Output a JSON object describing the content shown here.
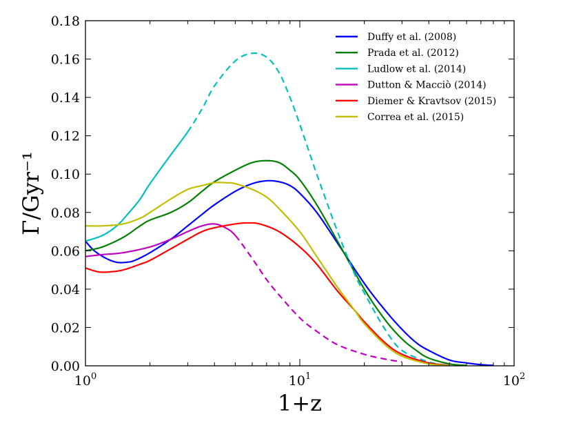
{
  "chart_data": {
    "type": "line",
    "title": "",
    "xlabel": "1+z",
    "ylabel": "Γ/Gyr⁻¹",
    "xscale": "log",
    "xlim": [
      1,
      100
    ],
    "ylim": [
      0,
      0.18
    ],
    "x_ticks": [
      {
        "value": 1,
        "base": "10",
        "exp": "0"
      },
      {
        "value": 10,
        "base": "10",
        "exp": "1"
      },
      {
        "value": 100,
        "base": "10",
        "exp": "2"
      }
    ],
    "y_ticks": [
      {
        "value": 0.0,
        "label": "0.00"
      },
      {
        "value": 0.02,
        "label": "0.02"
      },
      {
        "value": 0.04,
        "label": "0.04"
      },
      {
        "value": 0.06,
        "label": "0.06"
      },
      {
        "value": 0.08,
        "label": "0.08"
      },
      {
        "value": 0.1,
        "label": "0.10"
      },
      {
        "value": 0.12,
        "label": "0.12"
      },
      {
        "value": 0.14,
        "label": "0.14"
      },
      {
        "value": 0.16,
        "label": "0.16"
      },
      {
        "value": 0.18,
        "label": "0.18"
      }
    ],
    "legend_position": "top-right",
    "series": [
      {
        "name": "Duffy et al. (2008)",
        "color": "#0000ff",
        "x": [
          1.0,
          1.1,
          1.25,
          1.4,
          1.55,
          1.7,
          2.0,
          2.5,
          3.0,
          3.5,
          4.0,
          5.0,
          6.0,
          7.0,
          8.0,
          9.0,
          10.0,
          12.0,
          15.0,
          20.0,
          25.0,
          30.0,
          35.0,
          40.0,
          50.0,
          60.0,
          70.0,
          80.0
        ],
        "y": [
          0.065,
          0.06,
          0.056,
          0.054,
          0.054,
          0.055,
          0.059,
          0.066,
          0.073,
          0.079,
          0.084,
          0.091,
          0.095,
          0.0965,
          0.096,
          0.094,
          0.09,
          0.08,
          0.064,
          0.043,
          0.029,
          0.019,
          0.012,
          0.008,
          0.003,
          0.0015,
          0.0006,
          0.0002
        ],
        "solid_until": 80.0
      },
      {
        "name": "Prada et al. (2012)",
        "color": "#008000",
        "x": [
          1.0,
          1.2,
          1.5,
          1.8,
          2.0,
          2.5,
          3.0,
          3.5,
          4.0,
          5.0,
          6.0,
          7.0,
          8.0,
          9.0,
          10.0,
          12.0,
          15.0,
          20.0,
          25.0,
          30.0,
          35.0,
          40.0,
          50.0,
          60.0
        ],
        "y": [
          0.06,
          0.062,
          0.067,
          0.073,
          0.076,
          0.08,
          0.085,
          0.091,
          0.096,
          0.102,
          0.106,
          0.107,
          0.106,
          0.102,
          0.097,
          0.084,
          0.065,
          0.04,
          0.024,
          0.014,
          0.008,
          0.004,
          0.001,
          0.0002
        ],
        "solid_until": 60.0
      },
      {
        "name": "Ludlow et al. (2014)",
        "color": "#00bfbf",
        "x": [
          1.0,
          1.2,
          1.4,
          1.6,
          1.8,
          2.0,
          2.5,
          3.0,
          3.5,
          4.0,
          5.0,
          6.0,
          7.0,
          8.0,
          9.0,
          10.0,
          12.0,
          15.0,
          18.0,
          20.0,
          25.0,
          30.0,
          40.0,
          50.0
        ],
        "y": [
          0.065,
          0.068,
          0.073,
          0.08,
          0.087,
          0.095,
          0.11,
          0.122,
          0.134,
          0.146,
          0.159,
          0.163,
          0.161,
          0.153,
          0.14,
          0.126,
          0.1,
          0.07,
          0.048,
          0.038,
          0.019,
          0.008,
          0.002,
          0.0003
        ],
        "solid_until": 3.0
      },
      {
        "name": "Dutton & Macciò (2014)",
        "color": "#bf00bf",
        "x": [
          1.0,
          1.2,
          1.5,
          2.0,
          2.5,
          3.0,
          3.5,
          4.0,
          4.5,
          5.0,
          6.0,
          7.0,
          8.0,
          10.0,
          12.0,
          15.0,
          20.0,
          25.0,
          30.0
        ],
        "y": [
          0.057,
          0.058,
          0.059,
          0.062,
          0.066,
          0.07,
          0.073,
          0.074,
          0.072,
          0.068,
          0.056,
          0.045,
          0.037,
          0.025,
          0.018,
          0.011,
          0.006,
          0.0035,
          0.002
        ],
        "solid_until": 5.0
      },
      {
        "name": "Diemer & Kravtsov (2015)",
        "color": "#ff0000",
        "x": [
          1.0,
          1.15,
          1.3,
          1.5,
          1.8,
          2.0,
          2.5,
          3.0,
          3.5,
          4.0,
          5.0,
          5.7,
          6.5,
          8.0,
          10.0,
          12.0,
          15.0,
          18.0,
          20.0,
          25.0,
          30.0,
          40.0,
          50.0
        ],
        "y": [
          0.051,
          0.049,
          0.049,
          0.05,
          0.053,
          0.055,
          0.061,
          0.066,
          0.07,
          0.072,
          0.074,
          0.0745,
          0.074,
          0.07,
          0.062,
          0.053,
          0.039,
          0.029,
          0.023,
          0.012,
          0.006,
          0.0015,
          0.0003
        ],
        "solid_until": 50.0
      },
      {
        "name": "Correa et al. (2015)",
        "color": "#bfbf00",
        "x": [
          1.0,
          1.2,
          1.5,
          1.8,
          2.0,
          2.5,
          3.0,
          3.5,
          4.0,
          4.5,
          5.0,
          6.0,
          7.0,
          8.0,
          10.0,
          12.0,
          15.0,
          18.0,
          20.0,
          25.0,
          30.0,
          40.0,
          50.0
        ],
        "y": [
          0.073,
          0.073,
          0.074,
          0.077,
          0.08,
          0.087,
          0.092,
          0.094,
          0.0955,
          0.0955,
          0.095,
          0.092,
          0.088,
          0.082,
          0.07,
          0.057,
          0.041,
          0.029,
          0.022,
          0.011,
          0.005,
          0.001,
          0.0002
        ],
        "solid_until": 50.0
      }
    ]
  }
}
